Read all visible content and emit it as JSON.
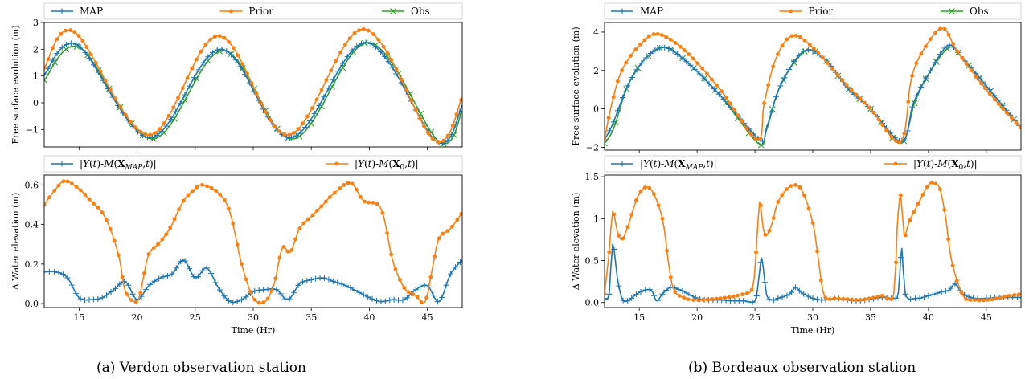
{
  "captions": {
    "left": "(a) Verdon observation station",
    "right": "(b) Bordeaux observation station"
  },
  "colors": {
    "map": "#1f77b4",
    "prior": "#ff7f0e",
    "obs": "#2ca02c"
  },
  "chart_data": [
    {
      "panel": "verdon-top",
      "type": "line",
      "ylabel": "Free surface evolution (m)",
      "xlim": [
        12,
        48
      ],
      "ylim": [
        -1.65,
        3.0
      ],
      "xticks": [
        15,
        20,
        25,
        30,
        35,
        40,
        45
      ],
      "yticks": [
        -1,
        0,
        1,
        2,
        3
      ],
      "legend": [
        "MAP",
        "Prior",
        "Obs"
      ],
      "series": [
        {
          "name": "Prior",
          "key": "prior",
          "marker": "dot",
          "x": [
            12,
            14.6,
            21.0,
            27.0,
            33.0,
            39.5,
            45.6,
            48
          ],
          "y": [
            1.3,
            2.65,
            -1.2,
            2.5,
            -1.2,
            2.75,
            -1.4,
            0.2
          ]
        },
        {
          "name": "MAP",
          "key": "map",
          "marker": "plus",
          "x": [
            12,
            14.9,
            21.1,
            27.2,
            33.2,
            39.7,
            45.8,
            48
          ],
          "y": [
            1.05,
            2.15,
            -1.3,
            2.0,
            -1.3,
            2.25,
            -1.45,
            -0.1
          ]
        },
        {
          "name": "Obs",
          "key": "obs",
          "marker": "x",
          "x": [
            12,
            15.1,
            21.3,
            27.4,
            33.4,
            39.9,
            46.0,
            48
          ],
          "y": [
            0.85,
            2.05,
            -1.35,
            1.95,
            -1.35,
            2.25,
            -1.45,
            -0.3
          ]
        }
      ]
    },
    {
      "panel": "verdon-bottom",
      "type": "line",
      "xlabel": "Time (Hr)",
      "ylabel": "Δ Water elevation (m)",
      "xlim": [
        12,
        48
      ],
      "ylim": [
        -0.02,
        0.65
      ],
      "xticks": [
        15,
        20,
        25,
        30,
        35,
        40,
        45
      ],
      "yticks": [
        0.0,
        0.2,
        0.4,
        0.6
      ],
      "legend": [
        "|Y(t)-M(X_MAP,t)|",
        "|Y(t)-M(X_0,t)|"
      ],
      "series": [
        {
          "name": "|Y(t)-M(X_MAP,t)|",
          "key": "map",
          "marker": "plus",
          "x": [
            12,
            13,
            14,
            15,
            16,
            17,
            18,
            19,
            20,
            21,
            22,
            23,
            24,
            25,
            26,
            27,
            28,
            29,
            30,
            31,
            32,
            33,
            34,
            35,
            36,
            37,
            38,
            39,
            40,
            41,
            42,
            43,
            44,
            45,
            46,
            47,
            48
          ],
          "y": [
            0.16,
            0.16,
            0.13,
            0.03,
            0.02,
            0.03,
            0.07,
            0.11,
            0.02,
            0.09,
            0.13,
            0.15,
            0.22,
            0.13,
            0.18,
            0.08,
            0.01,
            0.02,
            0.06,
            0.07,
            0.07,
            0.02,
            0.1,
            0.12,
            0.13,
            0.11,
            0.09,
            0.06,
            0.03,
            0.01,
            0.02,
            0.02,
            0.07,
            0.09,
            0.01,
            0.15,
            0.22
          ]
        },
        {
          "name": "|Y(t)-M(X_0,t)|",
          "key": "prior",
          "marker": "dot",
          "x": [
            12,
            13,
            13.8,
            15,
            16,
            17,
            17.8,
            18.5,
            19,
            20,
            20.5,
            21,
            21.8,
            22.5,
            23,
            24,
            25,
            25.6,
            27,
            28,
            29,
            30,
            31,
            31.8,
            32.5,
            33.2,
            34,
            35,
            36,
            37,
            38.4,
            39.5,
            41,
            42,
            43,
            44,
            44.8,
            45.5,
            46,
            47,
            48
          ],
          "y": [
            0.5,
            0.58,
            0.62,
            0.58,
            0.52,
            0.46,
            0.36,
            0.22,
            0.06,
            0.01,
            0.12,
            0.25,
            0.3,
            0.35,
            0.4,
            0.52,
            0.58,
            0.6,
            0.56,
            0.46,
            0.2,
            0.03,
            0.01,
            0.1,
            0.28,
            0.26,
            0.38,
            0.44,
            0.5,
            0.56,
            0.61,
            0.52,
            0.48,
            0.22,
            0.08,
            0.04,
            0.01,
            0.2,
            0.33,
            0.38,
            0.46
          ]
        }
      ]
    },
    {
      "panel": "bordeaux-top",
      "type": "line",
      "ylabel": "Free surface evolution (m)",
      "xlim": [
        12,
        48
      ],
      "ylim": [
        -2.15,
        4.5
      ],
      "xticks": [
        15,
        20,
        25,
        30,
        35,
        40,
        45
      ],
      "yticks": [
        -2,
        0,
        2,
        4
      ],
      "legend": [
        "MAP",
        "Prior",
        "Obs"
      ],
      "series": [
        {
          "name": "Prior",
          "key": "prior",
          "marker": "dot",
          "x": [
            12,
            12.6,
            13.5,
            15.0,
            16.6,
            19,
            22,
            25.2,
            25.8,
            26.8,
            28.2,
            30,
            33,
            35,
            37.6,
            38.5,
            39.5,
            41.2,
            42.5,
            45,
            48
          ],
          "y": [
            -1.6,
            0.2,
            2.0,
            3.3,
            3.9,
            3.0,
            1.0,
            -1.6,
            0.3,
            2.6,
            3.8,
            3.2,
            1.2,
            0.0,
            -1.7,
            1.5,
            3.0,
            4.2,
            3.0,
            1.0,
            -1.0
          ]
        },
        {
          "name": "MAP",
          "key": "map",
          "marker": "plus",
          "x": [
            12,
            12.7,
            14,
            15.5,
            17.1,
            19,
            22,
            25.4,
            26,
            27.2,
            29.2,
            31,
            33,
            35,
            37.7,
            38.7,
            40,
            41.7,
            43,
            45,
            48
          ],
          "y": [
            -1.6,
            -0.8,
            1.2,
            2.6,
            3.2,
            2.5,
            0.7,
            -1.6,
            -1.0,
            1.2,
            3.0,
            2.6,
            1.1,
            0.0,
            -1.7,
            0.3,
            1.8,
            3.3,
            2.6,
            1.2,
            -1.0
          ]
        },
        {
          "name": "Obs",
          "key": "obs",
          "marker": "x",
          "x": [
            12,
            12.8,
            14,
            15.5,
            17.2,
            19,
            22,
            25.3,
            26,
            27.2,
            29.3,
            31,
            33,
            35,
            37.6,
            38.8,
            40,
            41.8,
            43,
            45,
            48
          ],
          "y": [
            -1.8,
            -1.0,
            1.2,
            2.6,
            3.2,
            2.5,
            0.7,
            -1.8,
            -1.1,
            1.2,
            3.0,
            2.6,
            1.1,
            0.0,
            -1.8,
            0.3,
            1.8,
            3.2,
            2.6,
            1.2,
            -1.0
          ]
        }
      ]
    },
    {
      "panel": "bordeaux-bottom",
      "type": "line",
      "xlabel": "Time (Hr)",
      "ylabel": "Δ Water elevation (m)",
      "xlim": [
        12,
        48
      ],
      "ylim": [
        -0.06,
        1.52
      ],
      "xticks": [
        15,
        20,
        25,
        30,
        35,
        40,
        45
      ],
      "yticks": [
        0.0,
        0.5,
        1.0,
        1.5
      ],
      "legend": [
        "|Y(t)-M(X_MAP,t)|",
        "|Y(t)-M(X_0,t)|"
      ],
      "series": [
        {
          "name": "|Y(t)-M(X_MAP,t)|",
          "key": "map",
          "marker": "plus",
          "x": [
            12,
            12.4,
            12.7,
            13.1,
            13.5,
            14,
            15,
            16,
            16.5,
            17,
            17.7,
            18.5,
            19,
            20,
            21,
            22,
            23,
            24,
            25,
            25.3,
            25.6,
            26,
            26.5,
            27,
            28,
            28.5,
            29,
            30,
            31,
            32,
            33,
            34,
            35,
            36,
            37,
            37.4,
            37.7,
            38,
            39,
            40,
            41,
            41.8,
            42.3,
            43,
            44,
            45,
            46,
            47,
            48
          ],
          "y": [
            0.05,
            0.1,
            0.7,
            0.3,
            0.05,
            0.02,
            0.12,
            0.15,
            0.02,
            0.1,
            0.18,
            0.15,
            0.12,
            0.05,
            0.03,
            0.03,
            0.02,
            0.02,
            0.02,
            0.25,
            0.52,
            0.1,
            0.03,
            0.05,
            0.1,
            0.18,
            0.12,
            0.05,
            0.03,
            0.05,
            0.03,
            0.02,
            0.04,
            0.06,
            0.05,
            0.12,
            0.65,
            0.1,
            0.05,
            0.08,
            0.12,
            0.15,
            0.22,
            0.1,
            0.05,
            0.05,
            0.06,
            0.06,
            0.06
          ]
        },
        {
          "name": "|Y(t)-M(X_0,t)|",
          "key": "prior",
          "marker": "dot",
          "x": [
            12,
            12.4,
            12.7,
            13.1,
            13.5,
            14,
            15,
            16,
            17,
            17.5,
            18,
            19,
            20,
            22,
            24,
            24.8,
            25.1,
            25.4,
            25.7,
            26,
            26.5,
            27,
            28,
            29,
            30,
            30.5,
            31,
            32,
            33,
            34,
            35,
            36,
            37,
            37.3,
            37.6,
            37.9,
            38.3,
            39,
            40,
            40.5,
            41,
            41.5,
            42,
            43,
            44,
            45,
            46,
            47,
            48
          ],
          "y": [
            0.1,
            0.6,
            1.08,
            0.85,
            0.75,
            0.9,
            1.3,
            1.35,
            1.0,
            0.5,
            0.15,
            0.05,
            0.03,
            0.05,
            0.1,
            0.18,
            0.6,
            1.2,
            0.9,
            0.8,
            0.95,
            1.2,
            1.38,
            1.35,
            0.95,
            0.5,
            0.08,
            0.05,
            0.04,
            0.03,
            0.05,
            0.08,
            0.1,
            0.9,
            1.28,
            0.8,
            0.95,
            1.15,
            1.4,
            1.42,
            1.35,
            1.0,
            0.5,
            0.08,
            0.03,
            0.03,
            0.05,
            0.08,
            0.1
          ]
        }
      ]
    }
  ]
}
